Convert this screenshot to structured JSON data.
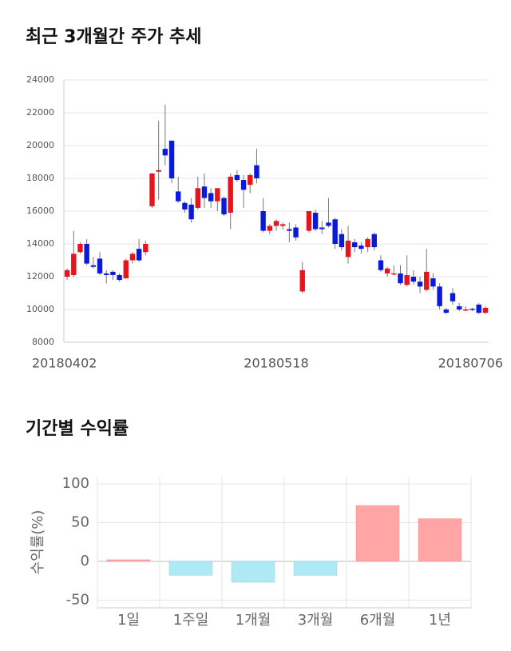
{
  "chart_data": [
    {
      "type": "candlestick",
      "title": "최근 3개월간 주가 추세",
      "categories": [
        "20180402",
        null,
        null,
        null,
        null,
        null,
        null,
        null,
        null,
        null,
        null,
        null,
        null,
        null,
        null,
        null,
        null,
        null,
        null,
        null,
        null,
        null,
        null,
        null,
        null,
        null,
        null,
        null,
        null,
        null,
        null,
        null,
        "20180518",
        null,
        null,
        null,
        null,
        null,
        null,
        null,
        null,
        null,
        null,
        null,
        null,
        null,
        null,
        null,
        null,
        null,
        null,
        null,
        null,
        null,
        null,
        null,
        null,
        null,
        null,
        null,
        null,
        null,
        null,
        null,
        "20180706"
      ],
      "open": [
        12000,
        12100,
        13500,
        14000,
        12700,
        13100,
        12200,
        12300,
        12100,
        11900,
        13000,
        13700,
        13500,
        16300,
        18400,
        19800,
        20300,
        17200,
        16500,
        16400,
        16200,
        17500,
        17100,
        16600,
        16800,
        15900,
        18200,
        17900,
        17600,
        18800,
        16000,
        14800,
        15100,
        15100,
        14900,
        15000,
        11100,
        14800,
        15900,
        15000,
        15300,
        15500,
        14600,
        13200,
        14100,
        13900,
        13800,
        14600,
        13000,
        12200,
        12200,
        12200,
        11500,
        12000,
        11700,
        11200,
        11900,
        11400,
        10000,
        11000,
        10200,
        10000,
        10050,
        10300,
        9800
      ],
      "high": [
        12500,
        14800,
        14100,
        14300,
        13200,
        13500,
        12400,
        12400,
        12200,
        13100,
        13500,
        14300,
        14200,
        18300,
        21500,
        22500,
        20300,
        18100,
        16600,
        16800,
        18100,
        18300,
        17400,
        17400,
        16900,
        18300,
        18500,
        18200,
        18300,
        19800,
        16800,
        15200,
        15500,
        15300,
        15300,
        15200,
        12900,
        16000,
        16100,
        15400,
        16800,
        15600,
        14900,
        15100,
        14300,
        14100,
        14400,
        14700,
        13300,
        12600,
        12700,
        12700,
        13300,
        12400,
        12000,
        13700,
        12200,
        11600,
        10100,
        11300,
        10400,
        10200,
        10100,
        10400,
        10200
      ],
      "low": [
        11800,
        12000,
        13400,
        12700,
        12500,
        12100,
        11600,
        11800,
        11700,
        11900,
        12800,
        12900,
        13300,
        16200,
        16700,
        18800,
        17700,
        16500,
        15900,
        15300,
        16100,
        16200,
        16200,
        16000,
        15700,
        14900,
        17800,
        16200,
        17100,
        17700,
        14700,
        14600,
        14800,
        14900,
        14100,
        14200,
        11000,
        14700,
        14800,
        14600,
        15000,
        13700,
        13600,
        12800,
        13500,
        13400,
        13500,
        13600,
        12300,
        12000,
        12100,
        11500,
        11400,
        11500,
        11000,
        11100,
        11200,
        10000,
        9700,
        10300,
        9900,
        9900,
        9900,
        9700,
        9700
      ],
      "close": [
        12400,
        13400,
        14000,
        12800,
        12600,
        12200,
        12100,
        12100,
        11800,
        13000,
        13400,
        13000,
        14000,
        18300,
        18500,
        19400,
        18000,
        16600,
        16100,
        15500,
        17400,
        16800,
        16600,
        17400,
        15800,
        18100,
        17900,
        17300,
        18200,
        18000,
        14800,
        15100,
        15400,
        15200,
        14800,
        14400,
        12400,
        16000,
        14900,
        14900,
        15100,
        14000,
        13800,
        14200,
        13800,
        13700,
        14300,
        13800,
        12400,
        12500,
        12200,
        11600,
        12100,
        11700,
        11400,
        12300,
        11400,
        10200,
        9800,
        10500,
        10000,
        10000,
        10000,
        9800,
        10100
      ],
      "up_color": "#e8131b",
      "down_color": "#0a1ad8",
      "ylim": [
        8000,
        24000
      ],
      "yticks": [
        8000,
        10000,
        12000,
        14000,
        16000,
        18000,
        20000,
        22000,
        24000
      ],
      "grid": true
    },
    {
      "type": "bar",
      "title": "기간별 수익률",
      "ylabel": "수익률(%)",
      "categories": [
        "1일",
        "1주일",
        "1개월",
        "3개월",
        "6개월",
        "1년"
      ],
      "values": [
        2,
        -18,
        -27,
        -18,
        72,
        55
      ],
      "positive_color": "#ffa5a5",
      "negative_color": "#aee9f5",
      "ylim": [
        -60,
        100
      ],
      "yticks": [
        -50,
        0,
        50,
        100
      ],
      "grid": true
    }
  ]
}
